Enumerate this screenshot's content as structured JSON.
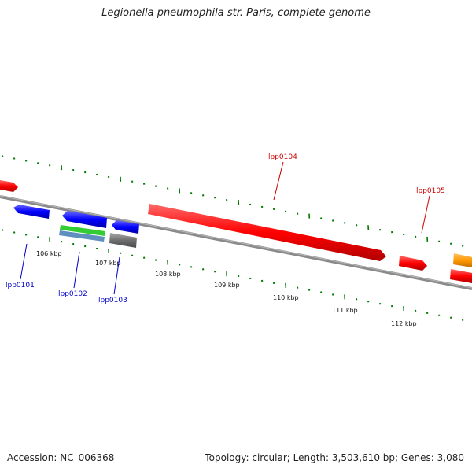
{
  "title": "Legionella pneumophila str. Paris, complete genome",
  "footer": {
    "accession": "Accession: NC_006368",
    "topology": "Topology: circular; Length: 3,503,610 bp; Genes: 3,080"
  },
  "colors": {
    "forward_gene": "#ff0000",
    "reverse_gene": "#0000ff",
    "backbone": "#808080",
    "ticks": "#007a00",
    "orange_feature": "#ff9900"
  },
  "scale_labels": [
    "106 kbp",
    "107 kbp",
    "108 kbp",
    "109 kbp",
    "110 kbp",
    "111 kbp",
    "112 kbp"
  ],
  "gene_labels": {
    "lpp0101": "lpp0101",
    "lpp0102": "lpp0102",
    "lpp0103": "lpp0103",
    "lpp0104": "lpp0104",
    "lpp0105": "lpp0105"
  }
}
